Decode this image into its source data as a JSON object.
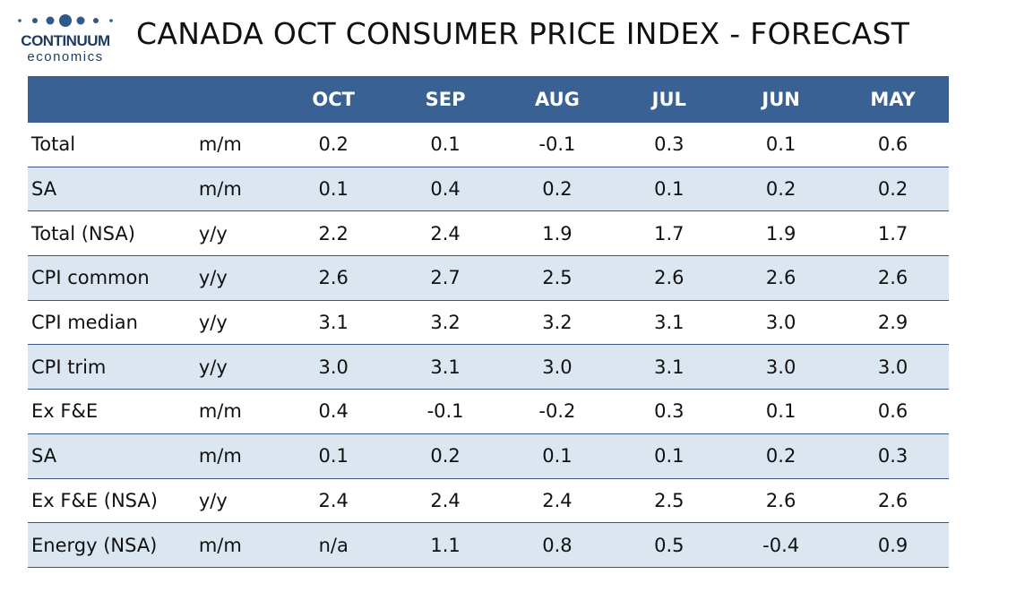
{
  "logo": {
    "name": "CONTINUUM",
    "tagline": "economics"
  },
  "header": {
    "title": "CANADA OCT CONSUMER PRICE INDEX - FORECAST"
  },
  "table": {
    "columns": [
      "OCT",
      "SEP",
      "AUG",
      "JUL",
      "JUN",
      "MAY"
    ],
    "rows": [
      [
        "Total",
        "m/m",
        "0.2",
        "0.1",
        "-0.1",
        "0.3",
        "0.1",
        "0.6"
      ],
      [
        "SA",
        "m/m",
        "0.1",
        "0.4",
        "0.2",
        "0.1",
        "0.2",
        "0.2"
      ],
      [
        "Total (NSA)",
        "y/y",
        "2.2",
        "2.4",
        "1.9",
        "1.7",
        "1.9",
        "1.7"
      ],
      [
        "CPI common",
        "y/y",
        "2.6",
        "2.7",
        "2.5",
        "2.6",
        "2.6",
        "2.6"
      ],
      [
        "CPI median",
        "y/y",
        "3.1",
        "3.2",
        "3.2",
        "3.1",
        "3.0",
        "2.9"
      ],
      [
        "CPI trim",
        "y/y",
        "3.0",
        "3.1",
        "3.0",
        "3.1",
        "3.0",
        "3.0"
      ],
      [
        "Ex F&E",
        "m/m",
        "0.4",
        "-0.1",
        "-0.2",
        "0.3",
        "0.1",
        "0.6"
      ],
      [
        "SA",
        "m/m",
        "0.1",
        "0.2",
        "0.1",
        "0.1",
        "0.2",
        "0.3"
      ],
      [
        "Ex F&E (NSA)",
        "y/y",
        "2.4",
        "2.4",
        "2.4",
        "2.5",
        "2.6",
        "2.6"
      ],
      [
        "Energy (NSA)",
        "m/m",
        "n/a",
        "1.1",
        "0.8",
        "0.5",
        "-0.4",
        "0.9"
      ]
    ]
  }
}
